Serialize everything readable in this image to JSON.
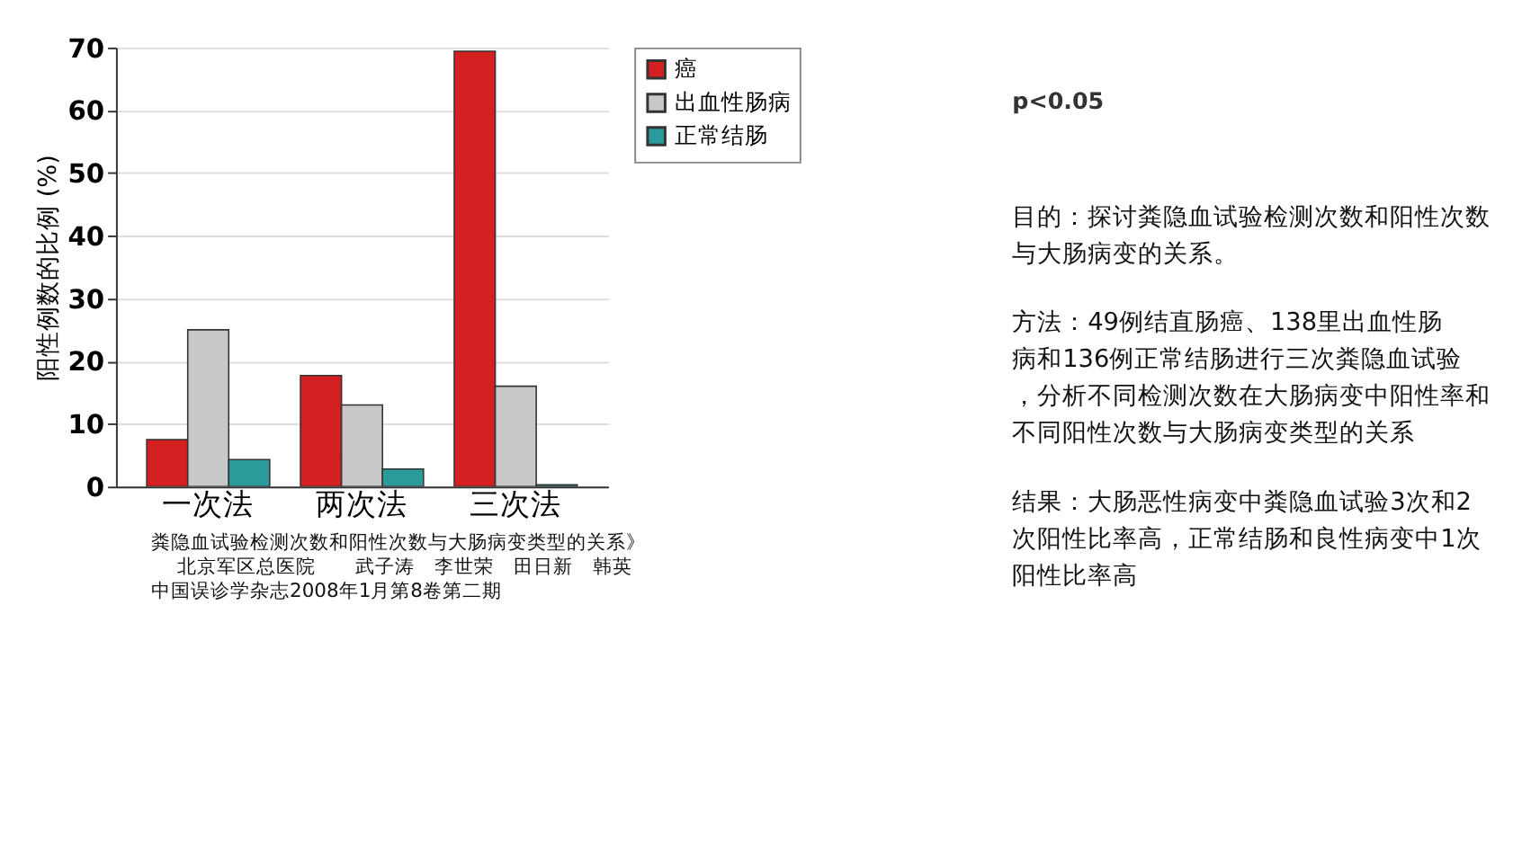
{
  "chart_data": {
    "type": "bar",
    "ylabel": "阳性例数的比例 (%)",
    "categories": [
      "一次法",
      "两次法",
      "三次法"
    ],
    "series": [
      {
        "name": "癌",
        "color": "#d42020",
        "values": [
          7.5,
          17.7,
          69.4
        ]
      },
      {
        "name": "出血性肠病",
        "color": "#c8c8c8",
        "values": [
          25,
          13,
          16
        ]
      },
      {
        "name": "正常结肠",
        "color": "#2a9a9a",
        "values": [
          4.3,
          2.8,
          0.3
        ]
      }
    ],
    "ylim": [
      0,
      70
    ],
    "yticks": [
      0,
      10,
      20,
      30,
      40,
      50,
      60,
      70
    ],
    "grid": "y",
    "legend": "top right",
    "annotations": [
      "p<0.05",
      "目的：探讨粪隐血试验检测次数和阳性次数与大肠病变的关系。",
      "方法：49例结直肠癌、138里出血性肠病和136例正常结肠进行三次粪隐血试验，分析不同检测次数在大肠病变中阳性率和不同阳性次数与大肠病变类型的关系",
      "结果：大肠恶性病变中粪隐血试验3次和2次阳性比率高，正常结肠和良性病变中1次阳性比率高",
      "粪隐血试验检测次数和阳性次数与大肠病变类型的关系》",
      "北京军区总医院　　武子涛　李世荣　田日新　韩英",
      "中国误诊学杂志2008年1月第8卷第二期"
    ]
  }
}
